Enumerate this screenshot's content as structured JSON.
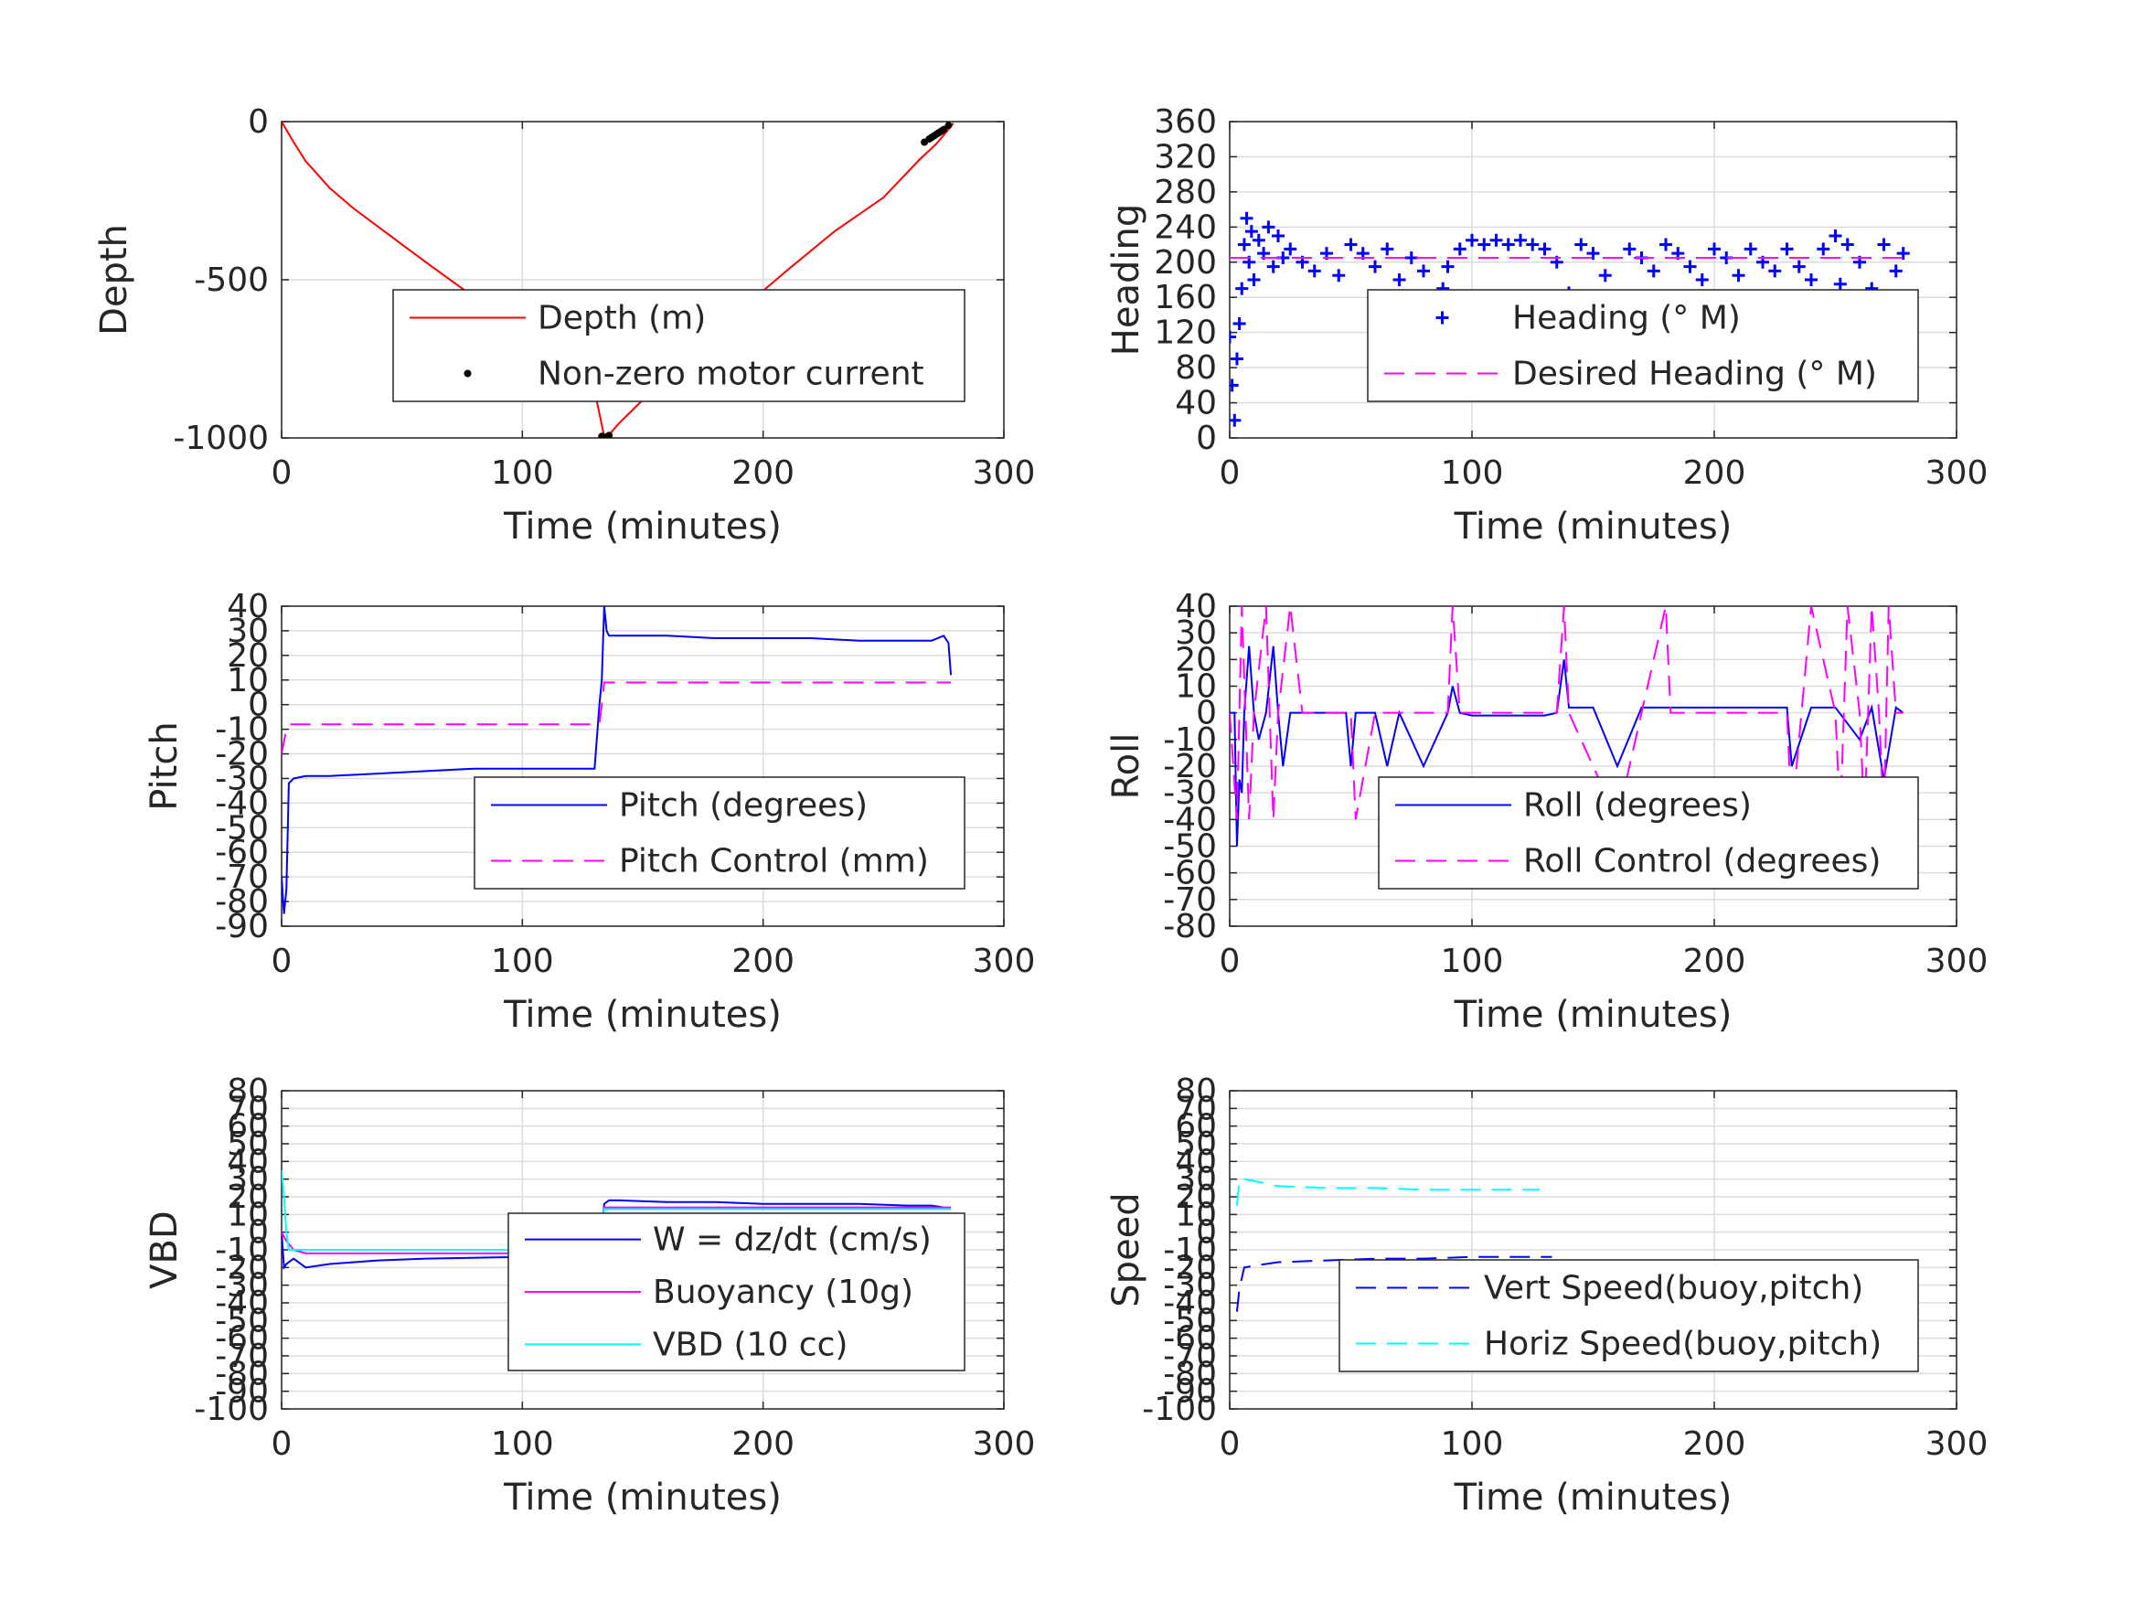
{
  "chart_data": [
    {
      "type": "line",
      "xlabel": "Time (minutes)",
      "ylabel": "Depth",
      "xlim": [
        0,
        300
      ],
      "ylim": [
        -1000,
        0
      ],
      "xticks": [
        "0",
        "100",
        "200",
        "300"
      ],
      "yticks": [
        "-1000",
        "-500",
        "0"
      ],
      "ytick_values": [
        -1000,
        -500,
        0
      ],
      "grid": true,
      "legend_position": "center-right",
      "series": [
        {
          "name": "Depth (m)",
          "color": "#ff0000",
          "style": "solid",
          "marker": "none",
          "x": [
            0,
            5,
            10,
            20,
            30,
            45,
            60,
            80,
            100,
            115,
            125,
            130,
            134,
            136,
            140,
            150,
            170,
            190,
            210,
            230,
            250,
            265,
            272,
            277,
            279
          ],
          "y": [
            0,
            -65,
            -125,
            -210,
            -275,
            -360,
            -445,
            -555,
            -665,
            -750,
            -810,
            -850,
            -995,
            -990,
            -955,
            -880,
            -740,
            -600,
            -470,
            -345,
            -240,
            -120,
            -70,
            -25,
            -5
          ]
        },
        {
          "name": "Non-zero motor current",
          "color": "#000000",
          "style": "none",
          "marker": "dot",
          "x": [
            133,
            134,
            135,
            136,
            267,
            269,
            270,
            271,
            272,
            273,
            274,
            275,
            277
          ],
          "y": [
            -995,
            -998,
            -997,
            -992,
            -65,
            -55,
            -50,
            -45,
            -40,
            -35,
            -30,
            -25,
            -12
          ]
        }
      ]
    },
    {
      "type": "scatter",
      "xlabel": "Time (minutes)",
      "ylabel": "Heading",
      "xlim": [
        0,
        300
      ],
      "ylim": [
        0,
        360
      ],
      "xticks": [
        "0",
        "100",
        "200",
        "300"
      ],
      "yticks": [
        "0",
        "40",
        "80",
        "120",
        "160",
        "200",
        "240",
        "280",
        "320",
        "360"
      ],
      "ytick_values": [
        0,
        40,
        80,
        120,
        160,
        200,
        240,
        280,
        320,
        360
      ],
      "grid": true,
      "legend_position": "center-right",
      "series": [
        {
          "name": "Heading (° M)",
          "color": "#0000ff",
          "style": "none",
          "marker": "plus",
          "x": [
            0,
            1,
            2,
            3,
            4,
            5,
            6,
            7,
            8,
            9,
            10,
            12,
            14,
            16,
            18,
            20,
            22,
            25,
            30,
            35,
            40,
            45,
            50,
            55,
            60,
            65,
            70,
            75,
            80,
            85,
            88,
            90,
            95,
            100,
            105,
            110,
            115,
            120,
            125,
            130,
            135,
            138,
            140,
            145,
            150,
            155,
            158,
            160,
            165,
            170,
            175,
            180,
            185,
            190,
            195,
            200,
            205,
            210,
            215,
            220,
            225,
            230,
            235,
            240,
            245,
            250,
            252,
            255,
            260,
            265,
            270,
            275,
            278
          ],
          "y": [
            115,
            60,
            20,
            90,
            130,
            170,
            220,
            250,
            200,
            235,
            180,
            225,
            210,
            240,
            195,
            230,
            205,
            215,
            200,
            190,
            210,
            185,
            220,
            210,
            195,
            215,
            180,
            205,
            190,
            160,
            170,
            195,
            215,
            225,
            220,
            225,
            220,
            225,
            220,
            215,
            200,
            150,
            165,
            220,
            210,
            185,
            160,
            150,
            215,
            205,
            190,
            220,
            210,
            195,
            180,
            215,
            205,
            185,
            215,
            200,
            190,
            215,
            195,
            180,
            215,
            230,
            175,
            220,
            200,
            170,
            220,
            190,
            210
          ]
        },
        {
          "name": "Desired Heading (° M)",
          "color": "#ff00ff",
          "style": "dashed",
          "marker": "none",
          "x": [
            0,
            278
          ],
          "y": [
            205,
            205
          ]
        }
      ]
    },
    {
      "type": "line",
      "xlabel": "Time (minutes)",
      "ylabel": "Pitch",
      "xlim": [
        0,
        300
      ],
      "ylim": [
        -90,
        40
      ],
      "xticks": [
        "0",
        "100",
        "200",
        "300"
      ],
      "yticks": [
        "-90",
        "-80",
        "-70",
        "-60",
        "-50",
        "-40",
        "-30",
        "-20",
        "-10",
        "0",
        "10",
        "20",
        "30",
        "40"
      ],
      "ytick_values": [
        -90,
        -80,
        -70,
        -60,
        -50,
        -40,
        -30,
        -20,
        -10,
        0,
        10,
        20,
        30,
        40
      ],
      "grid": true,
      "legend_position": "center-right",
      "series": [
        {
          "name": "Pitch (degrees)",
          "color": "#0000ff",
          "style": "solid",
          "marker": "none",
          "x": [
            0,
            1,
            2,
            3,
            5,
            10,
            20,
            40,
            60,
            80,
            100,
            120,
            130,
            132,
            133,
            134,
            135,
            136,
            140,
            160,
            180,
            200,
            220,
            240,
            260,
            270,
            275,
            277,
            278
          ],
          "y": [
            -70,
            -85,
            -75,
            -32,
            -30,
            -29,
            -29,
            -28,
            -27,
            -26,
            -26,
            -26,
            -26,
            0,
            10,
            40,
            30,
            28,
            28,
            28,
            27,
            27,
            27,
            26,
            26,
            26,
            28,
            25,
            12
          ]
        },
        {
          "name": "Pitch Control (mm)",
          "color": "#ff00ff",
          "style": "dashed",
          "marker": "none",
          "x": [
            0,
            2,
            4,
            10,
            50,
            100,
            132,
            133,
            134,
            140,
            200,
            278
          ],
          "y": [
            -20,
            -10,
            -8,
            -8,
            -8,
            -8,
            -8,
            0,
            9,
            9,
            9,
            9
          ]
        }
      ]
    },
    {
      "type": "line",
      "xlabel": "Time (minutes)",
      "ylabel": "Roll",
      "xlim": [
        0,
        300
      ],
      "ylim": [
        -80,
        40
      ],
      "xticks": [
        "0",
        "100",
        "200",
        "300"
      ],
      "yticks": [
        "-80",
        "-70",
        "-60",
        "-50",
        "-40",
        "-30",
        "-20",
        "-10",
        "0",
        "10",
        "20",
        "30",
        "40"
      ],
      "ytick_values": [
        -80,
        -70,
        -60,
        -50,
        -40,
        -30,
        -20,
        -10,
        0,
        10,
        20,
        30,
        40
      ],
      "grid": true,
      "legend_position": "center-right",
      "series": [
        {
          "name": "Roll (degrees)",
          "color": "#0000ff",
          "style": "solid",
          "marker": "none",
          "x": [
            0,
            2,
            3,
            4,
            5,
            6,
            8,
            10,
            12,
            15,
            18,
            20,
            22,
            25,
            30,
            40,
            48,
            50,
            52,
            55,
            60,
            65,
            70,
            80,
            90,
            92,
            95,
            100,
            110,
            120,
            130,
            135,
            138,
            140,
            142,
            150,
            160,
            170,
            180,
            190,
            200,
            210,
            220,
            230,
            232,
            240,
            250,
            260,
            265,
            270,
            275,
            278
          ],
          "y": [
            0,
            0,
            -50,
            -25,
            -30,
            0,
            25,
            0,
            -10,
            0,
            25,
            0,
            -20,
            0,
            0,
            0,
            0,
            -20,
            0,
            0,
            0,
            -20,
            0,
            -20,
            0,
            10,
            0,
            -1,
            -1,
            -1,
            -1,
            0,
            20,
            2,
            2,
            2,
            -20,
            2,
            2,
            2,
            2,
            2,
            2,
            2,
            -20,
            2,
            2,
            -10,
            2,
            -25,
            2,
            0
          ]
        },
        {
          "name": "Roll Control (degrees)",
          "color": "#ff00ff",
          "style": "dashed",
          "marker": "none",
          "x": [
            0,
            3,
            5,
            8,
            10,
            15,
            18,
            20,
            25,
            30,
            50,
            52,
            60,
            90,
            92,
            95,
            135,
            138,
            140,
            160,
            180,
            182,
            185,
            230,
            232,
            240,
            250,
            252,
            255,
            260,
            262,
            265,
            268,
            270,
            272,
            275,
            278
          ],
          "y": [
            0,
            -40,
            40,
            -40,
            0,
            40,
            -40,
            0,
            40,
            0,
            0,
            -40,
            0,
            0,
            40,
            0,
            0,
            40,
            0,
            -40,
            40,
            0,
            0,
            0,
            -40,
            40,
            0,
            -40,
            40,
            0,
            -40,
            40,
            0,
            -40,
            40,
            0,
            0
          ]
        }
      ]
    },
    {
      "type": "line",
      "xlabel": "Time (minutes)",
      "ylabel": "VBD",
      "xlim": [
        0,
        300
      ],
      "ylim": [
        -100,
        80
      ],
      "xticks": [
        "0",
        "100",
        "200",
        "300"
      ],
      "yticks": [
        "-100",
        "-90",
        "-80",
        "-70",
        "-60",
        "-50",
        "-40",
        "-30",
        "-20",
        "-10",
        "0",
        "10",
        "20",
        "30",
        "40",
        "50",
        "60",
        "70",
        "80"
      ],
      "ytick_values": [
        -100,
        -90,
        -80,
        -70,
        -60,
        -50,
        -40,
        -30,
        -20,
        -10,
        0,
        10,
        20,
        30,
        40,
        50,
        60,
        70,
        80
      ],
      "grid": true,
      "legend_position": "center-right",
      "series": [
        {
          "name": "W = dz/dt (cm/s)",
          "color": "#0000ff",
          "style": "solid",
          "marker": "none",
          "x": [
            0,
            1,
            2,
            5,
            10,
            20,
            40,
            60,
            100,
            132,
            133,
            134,
            136,
            140,
            160,
            180,
            200,
            220,
            240,
            260,
            270,
            275,
            278
          ],
          "y": [
            0,
            -20,
            -18,
            -15,
            -20,
            -18,
            -16,
            -15,
            -14,
            -14,
            0,
            16,
            18,
            18,
            17,
            17,
            16,
            16,
            16,
            15,
            15,
            14,
            13
          ]
        },
        {
          "name": "Buoyancy (10g)",
          "color": "#ff00ff",
          "style": "solid",
          "marker": "none",
          "x": [
            0,
            2,
            5,
            10,
            20,
            132,
            134,
            278
          ],
          "y": [
            0,
            -5,
            -10,
            -12,
            -12,
            -12,
            14,
            14
          ]
        },
        {
          "name": "VBD (10 cc)",
          "color": "#00ffff",
          "style": "solid",
          "marker": "none",
          "x": [
            0,
            1,
            2,
            3,
            5,
            132,
            133,
            134,
            278
          ],
          "y": [
            35,
            20,
            0,
            -10,
            -10,
            -10,
            0,
            13,
            13
          ]
        }
      ]
    },
    {
      "type": "line",
      "xlabel": "Time (minutes)",
      "ylabel": "Speed",
      "xlim": [
        0,
        300
      ],
      "ylim": [
        -100,
        80
      ],
      "xticks": [
        "0",
        "100",
        "200",
        "300"
      ],
      "yticks": [
        "-100",
        "-90",
        "-80",
        "-70",
        "-60",
        "-50",
        "-40",
        "-30",
        "-20",
        "-10",
        "0",
        "10",
        "20",
        "30",
        "40",
        "50",
        "60",
        "70",
        "80"
      ],
      "ytick_values": [
        -100,
        -90,
        -80,
        -70,
        -60,
        -50,
        -40,
        -30,
        -20,
        -10,
        0,
        10,
        20,
        30,
        40,
        50,
        60,
        70,
        80
      ],
      "grid": true,
      "legend_position": "center-right",
      "series": [
        {
          "name": "Vert Speed(buoy,pitch)",
          "color": "#0000ff",
          "style": "dashed",
          "marker": "none",
          "x": [
            3,
            4,
            6,
            10,
            20,
            40,
            60,
            80,
            100,
            120,
            133
          ],
          "y": [
            -45,
            -32,
            -20,
            -19,
            -17,
            -16,
            -15,
            -15,
            -14,
            -14,
            -14
          ]
        },
        {
          "name": "Horiz Speed(buoy,pitch)",
          "color": "#00ffff",
          "style": "dashed",
          "marker": "none",
          "x": [
            3,
            4,
            6,
            10,
            20,
            40,
            60,
            80,
            100,
            120,
            128
          ],
          "y": [
            15,
            30,
            30,
            29,
            26,
            25,
            25,
            24,
            24,
            24,
            24
          ]
        }
      ]
    }
  ]
}
